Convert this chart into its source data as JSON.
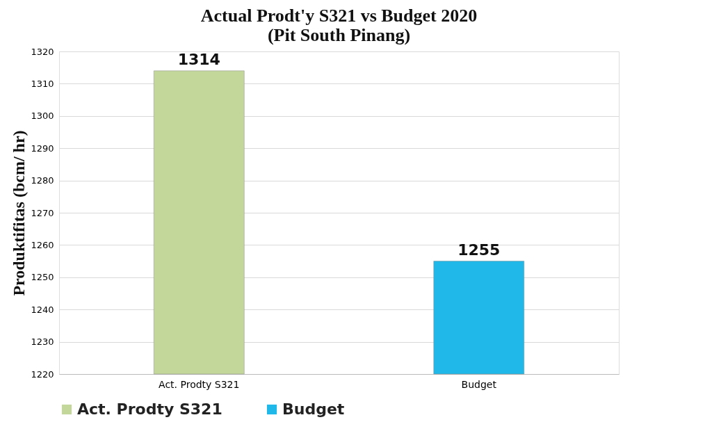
{
  "chart_data": {
    "type": "bar",
    "title": "Actual Prodt'y S321 vs Budget 2020\n(Pit South Pinang)",
    "ylabel": "Produktifitas (bcm/ hr)",
    "categories": [
      "Act. Prodty S321",
      "Budget"
    ],
    "series": [
      {
        "name": "Act. Prodty S321",
        "color": "#c4d79b",
        "values": [
          1314,
          null
        ]
      },
      {
        "name": "Budget",
        "color": "#1fb8e8",
        "values": [
          null,
          1255
        ]
      }
    ],
    "ylim": [
      1220,
      1320
    ],
    "yticks": [
      1220,
      1230,
      1240,
      1250,
      1260,
      1270,
      1280,
      1290,
      1300,
      1310,
      1320
    ],
    "grid": "y",
    "legend": "bottom",
    "data_labels": true
  }
}
